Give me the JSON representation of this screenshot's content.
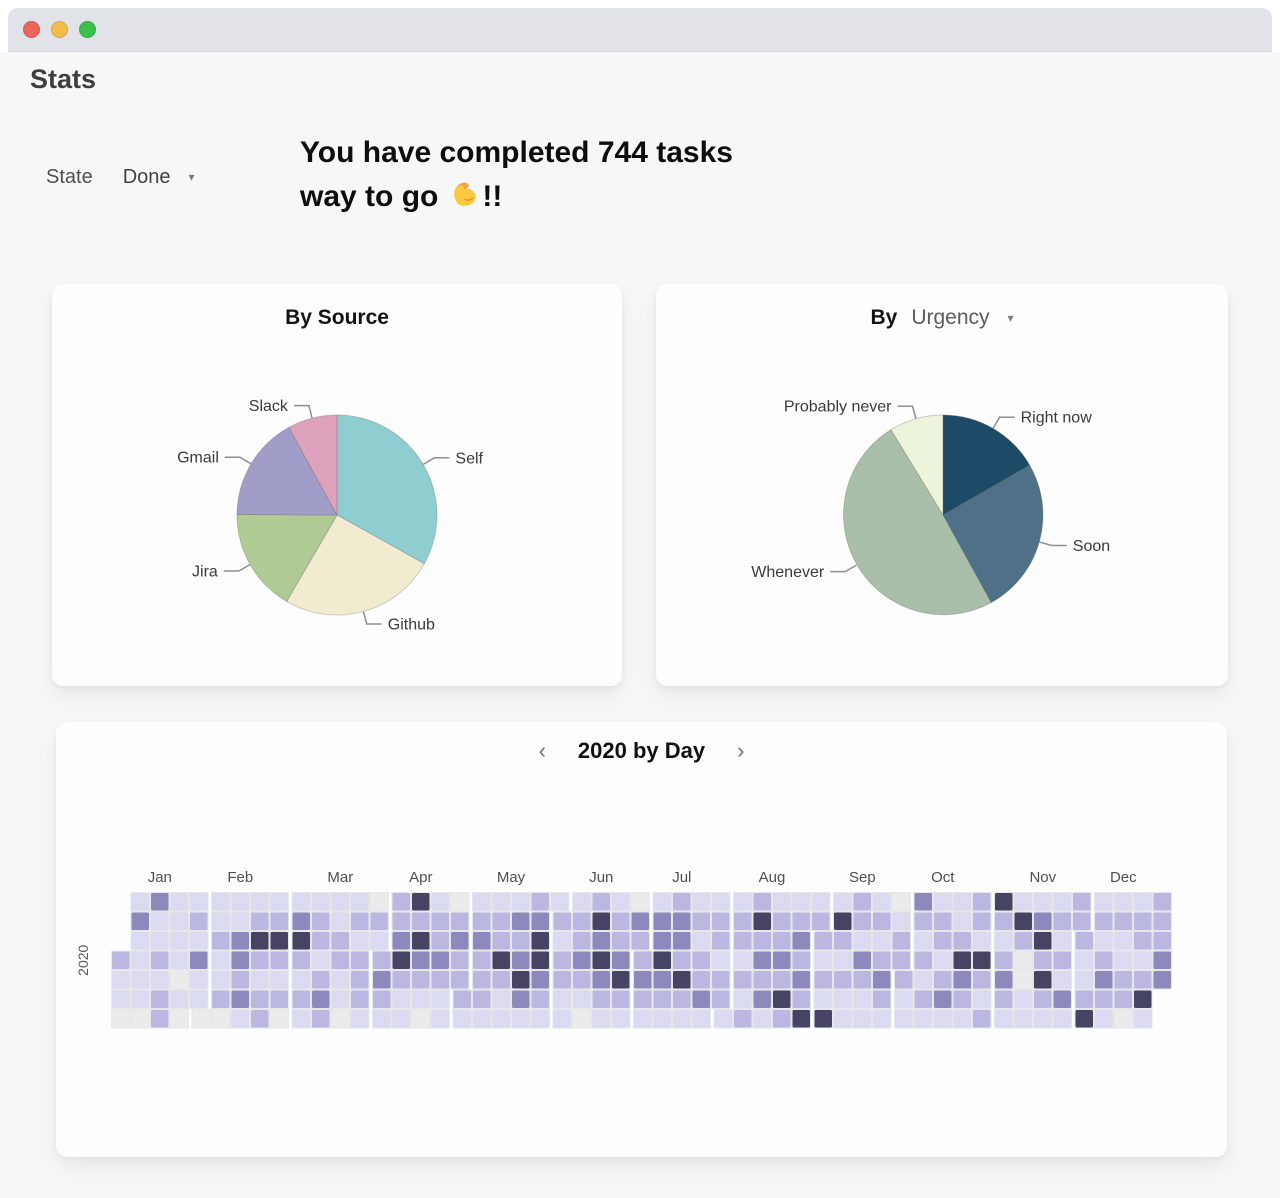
{
  "window": {
    "traffic_lights": [
      {
        "name": "close",
        "color": "#ec655a"
      },
      {
        "name": "minimize",
        "color": "#f3bb48"
      },
      {
        "name": "maximize",
        "color": "#3ac14c"
      }
    ]
  },
  "header": {
    "app_title": "Stats",
    "state_filter": {
      "label": "State",
      "value": "Done",
      "caret_icon": "▾"
    },
    "headline": {
      "line1": "You have completed 744 tasks",
      "line2_prefix": "way to go",
      "line2_suffix": "!!",
      "completed_count": 744
    }
  },
  "cards": {
    "by_source": {
      "title": "By Source"
    },
    "by_urgency": {
      "title_prefix": "By",
      "selected_dimension": "Urgency",
      "caret_icon": "▾"
    },
    "calendar": {
      "title": "2020 by Day",
      "prev_icon": "‹",
      "next_icon": "›",
      "year_label": "2020"
    }
  },
  "chart_data": [
    {
      "type": "pie",
      "title": "By Source",
      "start_angle_deg": 0,
      "direction": "clockwise",
      "legend_position": "outside-callouts",
      "slices": [
        {
          "label": "Self",
          "percent": 33.1,
          "color": "#8ecdd0"
        },
        {
          "label": "Github",
          "percent": 25.3,
          "color": "#f1ebcf"
        },
        {
          "label": "Jira",
          "percent": 16.7,
          "color": "#afca92"
        },
        {
          "label": "Gmail",
          "percent": 16.9,
          "color": "#a19dc9"
        },
        {
          "label": "Slack",
          "percent": 8.0,
          "color": "#dfa2bd"
        }
      ]
    },
    {
      "type": "pie",
      "title": "By Urgency",
      "start_angle_deg": 0,
      "direction": "clockwise",
      "legend_position": "outside-callouts",
      "slices": [
        {
          "label": "Right now",
          "percent": 16.7,
          "color": "#1d4a66"
        },
        {
          "label": "Soon",
          "percent": 25.3,
          "color": "#4e7189"
        },
        {
          "label": "Whenever",
          "percent": 49.3,
          "color": "#a9bfa9"
        },
        {
          "label": "Probably never",
          "percent": 8.7,
          "color": "#ecf4dc"
        }
      ]
    },
    {
      "type": "heatmap",
      "title": "2020 by Day",
      "year": "2020",
      "week_starts": "Sunday",
      "jan1_weekday": 3,
      "months": [
        "Jan",
        "Feb",
        "Mar",
        "Apr",
        "May",
        "Jun",
        "Jul",
        "Aug",
        "Sep",
        "Oct",
        "Nov",
        "Dec"
      ],
      "month_days": [
        31,
        29,
        31,
        30,
        31,
        30,
        31,
        31,
        30,
        31,
        30,
        31
      ],
      "level_colors": [
        "#ebebeb",
        "#dadaf0",
        "#bab8e1",
        "#8c89bd",
        "#454462"
      ],
      "grid_bg_color": "#e7e7ea",
      "month_levels": [
        "2110131111031121221111010121311",
        "01121120113323112421221242120",
        "1342121122123211221101212221021",
        "232122342114243210122321102322",
        "2112322211224211132343123443211",
        "212211122321024343211223421032",
        "2321133432123324211212231122122",
        "1122121224232311223242123232412",
        "212141421211221321112123210122",
        "2113212121122123111243212214212",
        "421232114200111342421121213122",
        "2112412123211211220122124122233"
      ]
    }
  ]
}
